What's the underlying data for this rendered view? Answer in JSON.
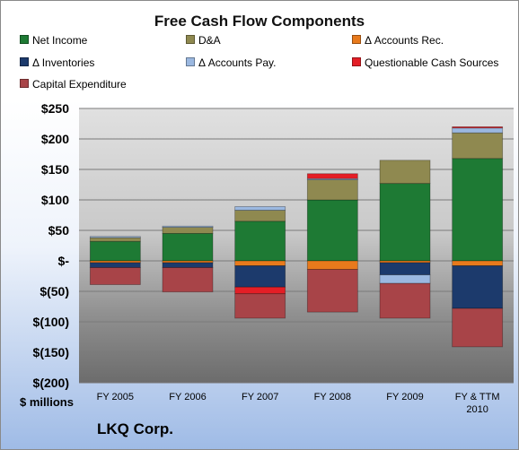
{
  "chart_data": {
    "type": "bar",
    "stacked": true,
    "title": "Free Cash Flow Components",
    "units_label": "$ millions",
    "company_label": "LKQ Corp.",
    "categories": [
      "FY 2005",
      "FY 2006",
      "FY 2007",
      "FY 2008",
      "FY 2009",
      "FY & TTM 2010"
    ],
    "ylim": [
      -200,
      250
    ],
    "y_ticks": [
      250,
      200,
      150,
      100,
      50,
      0,
      -50,
      -100,
      -150,
      -200
    ],
    "y_tick_labels": [
      "$250",
      "$200",
      "$150",
      "$100",
      "$50",
      "$-",
      "$(50)",
      "$(100)",
      "$(150)",
      "$(200)"
    ],
    "grid": true,
    "legend_position": "top",
    "series": [
      {
        "name": "Net Income",
        "color": "#1e7a34",
        "values": [
          32,
          45,
          65,
          100,
          127,
          168
        ]
      },
      {
        "name": "D&A",
        "color": "#8f8950",
        "values": [
          6,
          10,
          18,
          33,
          38,
          42
        ]
      },
      {
        "name": "Δ Accounts Rec.",
        "color": "#e87a1c",
        "values": [
          -3,
          -3,
          -8,
          -14,
          -3,
          -8
        ]
      },
      {
        "name": "Δ Inventories",
        "color": "#1c3a6c",
        "values": [
          -8,
          -8,
          -35,
          0,
          -20,
          -70
        ]
      },
      {
        "name": "Δ Accounts Pay.",
        "color": "#9bb8e0",
        "values": [
          2,
          2,
          6,
          2,
          -14,
          8
        ]
      },
      {
        "name": "Questionable Cash Sources",
        "color": "#e41e26",
        "values": [
          0,
          0,
          -11,
          8,
          0,
          2
        ]
      },
      {
        "name": "Capital Expenditure",
        "color": "#a84448",
        "values": [
          -28,
          -40,
          -40,
          -70,
          -57,
          -63
        ]
      }
    ]
  }
}
